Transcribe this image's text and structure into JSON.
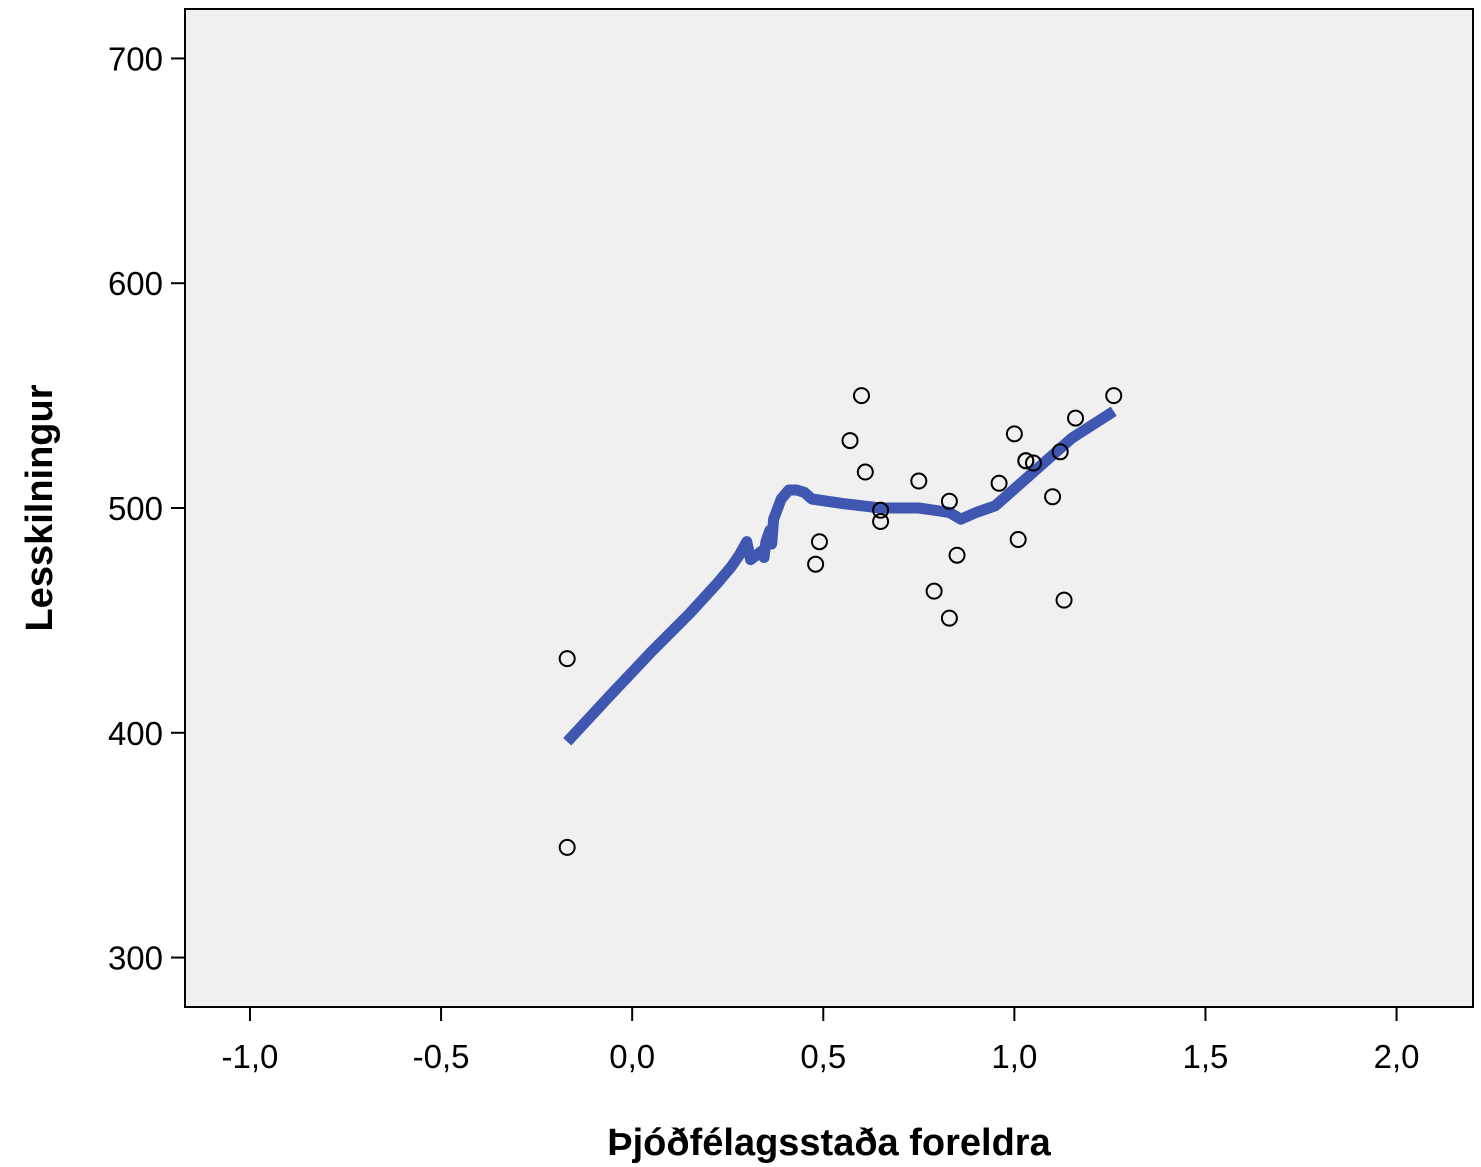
{
  "chart_data": {
    "type": "scatter",
    "xlabel": "Þjóðfélagsstaða foreldra",
    "ylabel": "Lesskilningur",
    "xlim": [
      -1.17,
      2.2
    ],
    "ylim": [
      278,
      722
    ],
    "x_ticks": [
      -1.0,
      -0.5,
      0.0,
      0.5,
      1.0,
      1.5,
      2.0
    ],
    "x_tick_labels": [
      "-1,0",
      "-0,5",
      "0,0",
      "0,5",
      "1,0",
      "1,5",
      "2,0"
    ],
    "y_ticks": [
      300,
      400,
      500,
      600,
      700
    ],
    "y_tick_labels": [
      "300",
      "400",
      "500",
      "600",
      "700"
    ],
    "grid": false,
    "colors": {
      "plot_background": "#f0f0f0",
      "fit_line": "#3f57b0",
      "points": "#000000"
    },
    "series": [
      {
        "kind": "points",
        "x": [
          -0.17,
          -0.17,
          0.48,
          0.49,
          0.57,
          0.6,
          0.61,
          0.65,
          0.65,
          0.75,
          0.79,
          0.83,
          0.83,
          0.85,
          0.96,
          1.0,
          1.01,
          1.03,
          1.03,
          1.05,
          1.1,
          1.12,
          1.13,
          1.16,
          1.26
        ],
        "y": [
          433,
          349,
          475,
          485,
          530,
          550,
          516,
          499,
          494,
          512,
          463,
          451,
          503,
          479,
          511,
          533,
          486,
          521,
          521,
          520,
          505,
          525,
          459,
          540,
          550
        ]
      },
      {
        "kind": "fit-line",
        "x": [
          -0.17,
          -0.05,
          0.05,
          0.15,
          0.22,
          0.26,
          0.28,
          0.3,
          0.31,
          0.34,
          0.345,
          0.35,
          0.36,
          0.365,
          0.37,
          0.39,
          0.41,
          0.43,
          0.45,
          0.47,
          0.55,
          0.65,
          0.75,
          0.79,
          0.83,
          0.86,
          0.9,
          0.95,
          1.05,
          1.15,
          1.26
        ],
        "y": [
          396,
          418,
          436,
          453,
          466,
          474,
          479,
          485,
          477,
          481,
          478,
          485,
          490,
          484,
          495,
          504,
          508,
          508,
          507,
          504,
          502,
          500,
          500,
          499,
          498,
          495,
          498,
          501,
          516,
          531,
          543
        ]
      }
    ]
  }
}
